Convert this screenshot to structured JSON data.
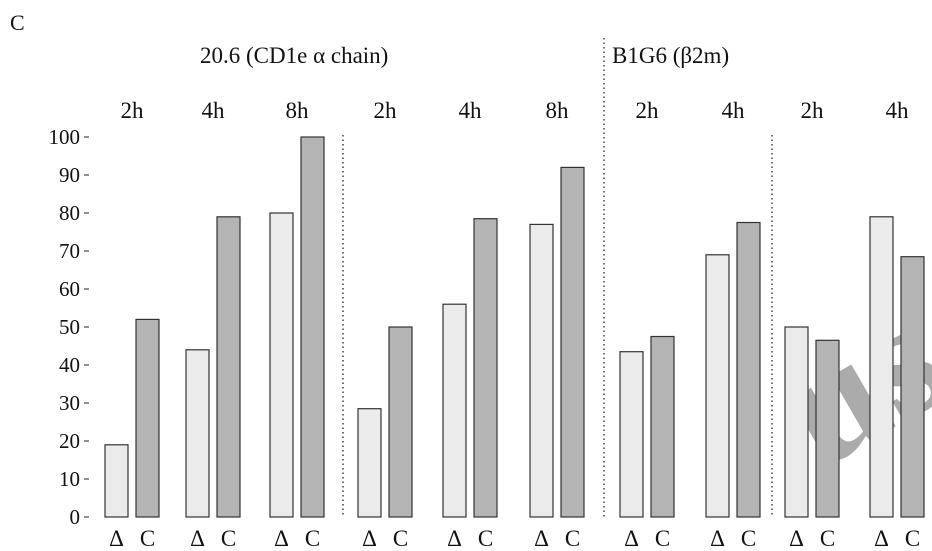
{
  "panel_label": "C",
  "group_titles": [
    "20.6 (CD1e α chain)",
    "B1G6 (β2m)"
  ],
  "colors": {
    "delta_fill": "#ebebeb",
    "c_fill": "#b4b4b4",
    "outline": "#333333",
    "watermark": "#cfcfcf"
  },
  "watermark_text": "uscri",
  "chart_data": {
    "type": "bar",
    "title": "",
    "xlabel": "",
    "ylabel": "",
    "ylim": [
      0,
      100
    ],
    "yticks": [
      0,
      10,
      20,
      30,
      40,
      50,
      60,
      70,
      80,
      90,
      100
    ],
    "grid": false,
    "legend": "none",
    "condition_labels": [
      "Δ",
      "C"
    ],
    "series_order": [
      "Δ",
      "C"
    ],
    "groups": [
      {
        "title_index": 0,
        "time": "2h",
        "values": [
          19,
          52
        ]
      },
      {
        "title_index": 0,
        "time": "4h",
        "values": [
          44,
          79
        ]
      },
      {
        "title_index": 0,
        "time": "8h",
        "values": [
          80,
          100
        ]
      },
      {
        "title_index": 0,
        "time": "2h",
        "values": [
          28.5,
          50
        ]
      },
      {
        "title_index": 0,
        "time": "4h",
        "values": [
          56,
          78.5
        ]
      },
      {
        "title_index": 0,
        "time": "8h",
        "values": [
          77,
          92
        ]
      },
      {
        "title_index": 1,
        "time": "2h",
        "values": [
          43.5,
          47.5
        ]
      },
      {
        "title_index": 1,
        "time": "4h",
        "values": [
          69,
          77.5
        ]
      },
      {
        "title_index": 1,
        "time": "2h",
        "values": [
          50,
          46.5
        ]
      },
      {
        "title_index": 1,
        "time": "4h",
        "values": [
          79,
          68.5
        ]
      }
    ]
  }
}
